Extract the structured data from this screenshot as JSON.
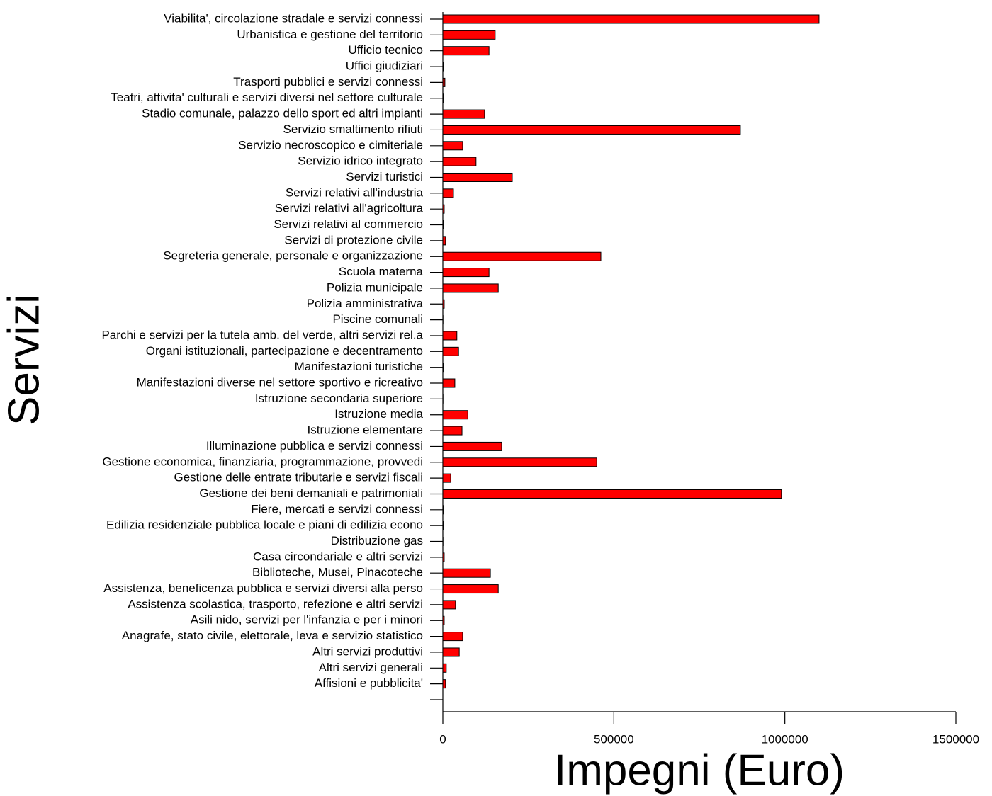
{
  "chart_data": {
    "type": "bar",
    "orientation": "horizontal",
    "x_label": "Impegni (Euro)",
    "y_label": "Servizi",
    "categories": [
      "Viabilita', circolazione stradale e servizi connessi",
      "Urbanistica e gestione del territorio",
      "Ufficio tecnico",
      "Uffici giudiziari",
      "Trasporti pubblici e servizi connessi",
      "Teatri, attivita' culturali e servizi diversi nel settore culturale",
      "Stadio comunale, palazzo dello sport ed altri impianti",
      "Servizio smaltimento rifiuti",
      "Servizio necroscopico e cimiteriale",
      "Servizio idrico integrato",
      "Servizi turistici",
      "Servizi relativi all'industria",
      "Servizi relativi all'agricoltura",
      "Servizi relativi al commercio",
      "Servizi di protezione civile",
      "Segreteria generale, personale e organizzazione",
      "Scuola materna",
      "Polizia municipale",
      "Polizia amministrativa",
      "Piscine comunali",
      "Parchi e servizi per la tutela amb. del verde, altri servizi rel.a",
      "Organi istituzionali, partecipazione e decentramento",
      "Manifestazioni turistiche",
      "Manifestazioni diverse nel settore sportivo e ricreativo",
      "Istruzione secondaria superiore",
      "Istruzione media",
      "Istruzione elementare",
      "Illuminazione pubblica e servizi connessi",
      "Gestione economica, finanziaria, programmazione, provvedi",
      "Gestione delle entrate tributarie e servizi fiscali",
      "Gestione dei beni demaniali e patrimoniali",
      "Fiere, mercati e servizi connessi",
      "Edilizia residenziale pubblica locale e piani di edilizia econo",
      "Distribuzione gas",
      "Casa circondariale e altri servizi",
      "Biblioteche, Musei, Pinacoteche",
      "Assistenza, beneficenza pubblica e servizi diversi alla perso",
      "Assistenza scolastica, trasporto, refezione e altri servizi",
      "Asili nido, servizi per l'infanzia e per i minori",
      "Anagrafe, stato civile, elettorale, leva e servizio statistico",
      "Altri servizi produttivi",
      "Altri servizi generali",
      "Affisioni e pubblicita'",
      null
    ],
    "values": [
      1100000,
      153000,
      135000,
      2000,
      6000,
      1000,
      122000,
      870000,
      58000,
      97000,
      203000,
      31000,
      4000,
      1000,
      8000,
      462000,
      135000,
      162000,
      4000,
      500,
      41000,
      46000,
      1000,
      35000,
      500,
      73000,
      56000,
      172000,
      450000,
      23000,
      990000,
      1000,
      1000,
      500,
      4000,
      139000,
      162000,
      37000,
      4000,
      58000,
      48000,
      10000,
      8000,
      0
    ],
    "color": "#ff0000",
    "xlim": [
      0,
      1500000
    ],
    "xticks": [
      0,
      500000,
      1000000,
      1500000
    ],
    "grid": false
  }
}
